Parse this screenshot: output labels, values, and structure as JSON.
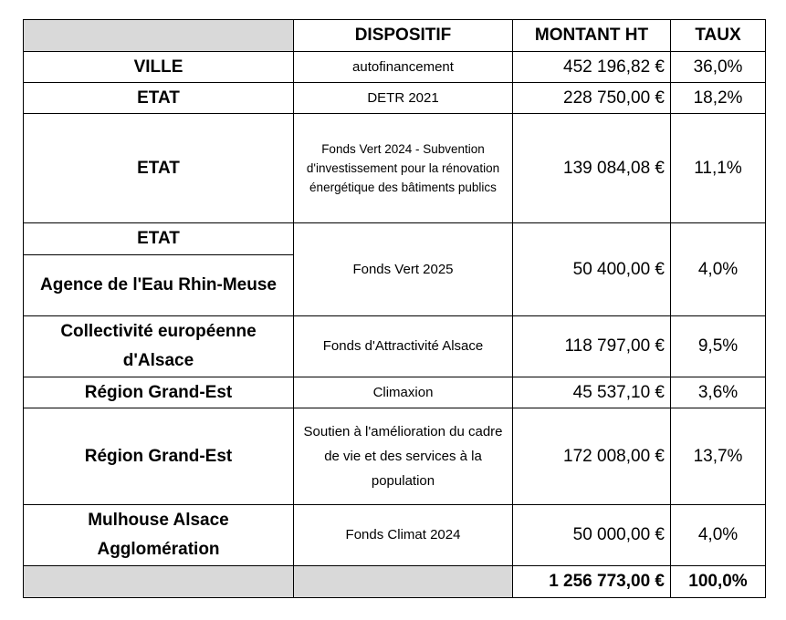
{
  "header": {
    "col1": "",
    "dispositif": "DISPOSITIF",
    "montant": "MONTANT HT",
    "taux": "TAUX"
  },
  "rows": [
    {
      "financeur": "VILLE",
      "dispositif": "autofinancement",
      "montant": "452 196,82 €",
      "taux": "36,0%"
    },
    {
      "financeur": "ETAT",
      "dispositif": "DETR 2021",
      "montant": "228 750,00 €",
      "taux": "18,2%"
    },
    {
      "financeur": "ETAT",
      "dispositif": "Fonds Vert 2024 - Subvention d'investissement pour la rénovation énergétique des bâtiments publics",
      "montant": "139 084,08 €",
      "taux": "11,1%"
    },
    {
      "financeur": "ETAT",
      "financeur2": "Agence de l'Eau Rhin-Meuse",
      "dispositif": "Fonds Vert 2025",
      "montant": "50 400,00 €",
      "taux": "4,0%"
    },
    {
      "financeur": "Collectivité européenne d'Alsace",
      "dispositif": "Fonds d'Attractivité Alsace",
      "montant": "118 797,00 €",
      "taux": "9,5%"
    },
    {
      "financeur": "Région Grand-Est",
      "dispositif": "Climaxion",
      "montant": "45 537,10 €",
      "taux": "3,6%"
    },
    {
      "financeur": "Région Grand-Est",
      "dispositif": "Soutien à l'amélioration du cadre de vie et des services à la population",
      "montant": "172 008,00 €",
      "taux": "13,7%"
    },
    {
      "financeur": "Mulhouse Alsace Agglomération",
      "dispositif": "Fonds Climat 2024",
      "montant": "50 000,00 €",
      "taux": "4,0%"
    }
  ],
  "total": {
    "montant": "1 256 773,00 €",
    "taux": "100,0%"
  }
}
